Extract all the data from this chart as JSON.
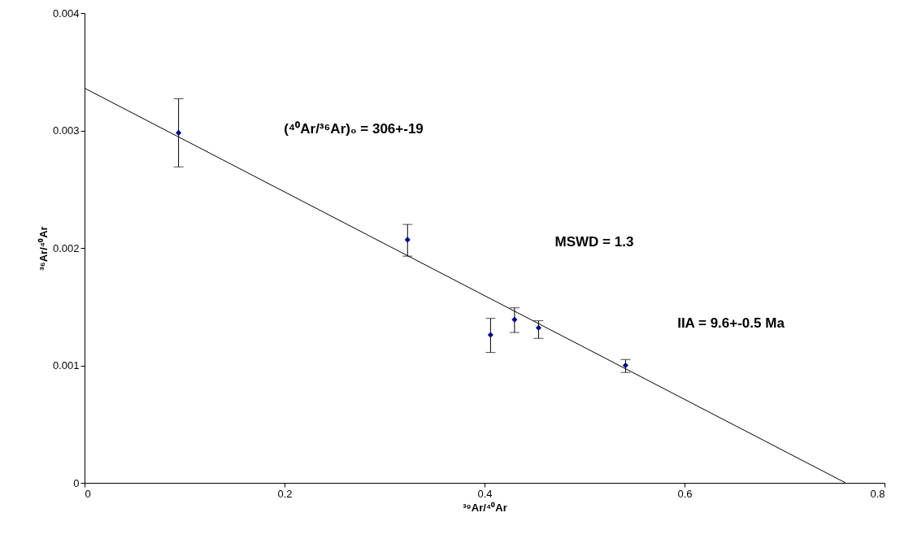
{
  "chart_data": {
    "type": "scatter",
    "xlabel": "³⁹Ar/⁴⁰Ar",
    "ylabel": "³⁶Ar/⁴⁰Ar",
    "x": [
      0.094,
      0.323,
      0.406,
      0.43,
      0.454,
      0.541
    ],
    "series": [
      {
        "color": "#000080",
        "marker": "diamond",
        "values": [
          0.00298,
          0.00207,
          0.00126,
          0.00139,
          0.00132,
          0.001
        ],
        "errors": [
          [
            0.00269,
            0.00327
          ],
          [
            0.00193,
            0.0022
          ],
          [
            0.00111,
            0.0014
          ],
          [
            0.00128,
            0.00149
          ],
          [
            0.00123,
            0.00138
          ],
          [
            0.00094,
            0.00105
          ]
        ]
      },
      {
        "type": "line",
        "color": "#000000",
        "x": [
          0,
          0.761
        ],
        "values": [
          0.00336,
          0
        ]
      }
    ],
    "xlim": [
      0,
      0.8
    ],
    "xticks": [
      0,
      0.2,
      0.4,
      0.6,
      0.8
    ],
    "ylim": [
      0,
      0.004
    ],
    "yticks": [
      0,
      0.001,
      0.002,
      0.003,
      0.004
    ],
    "grid": false,
    "annotations": [
      "(⁴⁰Ar/³⁶Ar)₀ = 306+-19",
      "MSWD = 1.3",
      "IIA = 9.6+-0.5 Ma"
    ]
  }
}
